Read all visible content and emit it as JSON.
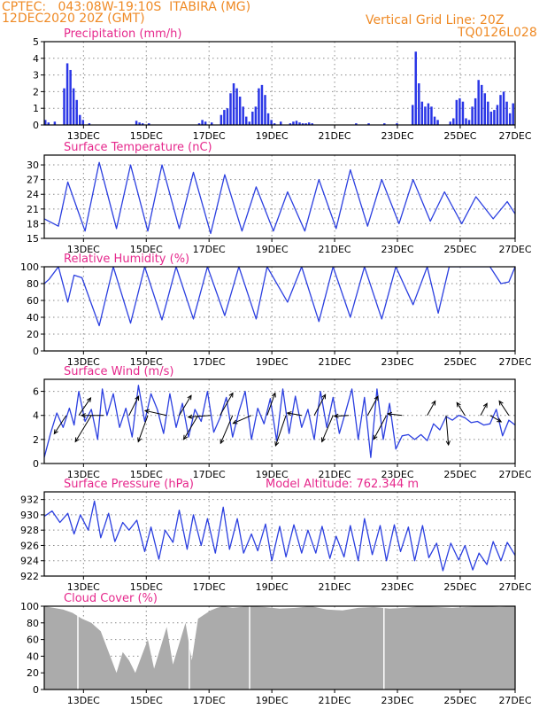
{
  "header": {
    "line1_left": "CPTEC:   043:08W-19:10S  ITABIRA (MG)",
    "line2_left": "12DEC2020 20Z (GMT)",
    "line1_right": "Vertical Grid Line: 20Z",
    "line2_right": "TQ0126L028"
  },
  "colors": {
    "header": "#ef8a25",
    "title": "#e6288c",
    "line": "#2b3fe0",
    "bar": "#2a36e6",
    "cloud": "#ababab"
  },
  "chart_data": [
    {
      "type": "bar",
      "title": "Precipitation (mm/h)",
      "ylim": [
        0,
        5
      ],
      "yticks": [
        0,
        1,
        2,
        3,
        4,
        5
      ],
      "xtick_labels": [
        "13DEC",
        "15DEC",
        "17DEC",
        "19DEC",
        "21DEC",
        "23DEC",
        "25DEC",
        "27DEC"
      ],
      "x_start": "2020-12-12 20Z",
      "x_end": "2020-12-27 20Z",
      "x": [
        0.0,
        0.1,
        0.3,
        0.6,
        0.7,
        0.8,
        0.9,
        1.0,
        1.1,
        1.2,
        1.4,
        2.9,
        3.0,
        3.1,
        3.3,
        4.9,
        5.0,
        5.1,
        5.3,
        5.6,
        5.7,
        5.8,
        5.9,
        6.0,
        6.1,
        6.2,
        6.3,
        6.4,
        6.5,
        6.6,
        6.7,
        6.8,
        6.9,
        7.0,
        7.1,
        7.2,
        7.3,
        7.5,
        7.8,
        7.9,
        8.0,
        8.1,
        8.2,
        8.3,
        8.4,
        8.5,
        9.9,
        10.3,
        10.8,
        11.2,
        11.7,
        11.8,
        11.9,
        12.0,
        12.1,
        12.2,
        12.3,
        12.4,
        12.5,
        12.9,
        13.0,
        13.1,
        13.2,
        13.3,
        13.4,
        13.5,
        13.6,
        13.7,
        13.8,
        13.9,
        14.0,
        14.1,
        14.2,
        14.3,
        14.4,
        14.5,
        14.6,
        14.7,
        14.8,
        14.9,
        15.0
      ],
      "values": [
        0.3,
        0.15,
        0.2,
        2.2,
        3.7,
        3.3,
        2.2,
        1.5,
        0.6,
        0.3,
        0.1,
        0.25,
        0.15,
        0.1,
        0.1,
        0.1,
        0.3,
        0.2,
        0.15,
        0.6,
        0.9,
        1.0,
        1.9,
        2.5,
        2.2,
        1.7,
        1.1,
        0.5,
        0.2,
        0.8,
        1.1,
        2.2,
        2.4,
        1.8,
        0.7,
        0.3,
        0.1,
        0.2,
        0.1,
        0.2,
        0.25,
        0.15,
        0.1,
        0.1,
        0.15,
        0.1,
        0.1,
        0.1,
        0.1,
        0.1,
        1.2,
        4.4,
        2.5,
        1.4,
        1.1,
        1.3,
        1.1,
        0.5,
        0.3,
        0.2,
        0.4,
        1.5,
        1.6,
        1.4,
        0.4,
        0.3,
        1.1,
        1.6,
        2.7,
        2.4,
        1.9,
        1.4,
        0.8,
        0.9,
        1.2,
        1.8,
        2.0,
        1.4,
        0.7,
        1.3,
        1.4
      ]
    },
    {
      "type": "line",
      "title": "Surface Temperature (nC)",
      "ylim": [
        15,
        32
      ],
      "yticks": [
        15,
        18,
        21,
        24,
        27,
        30
      ],
      "xtick_labels": [
        "13DEC",
        "15DEC",
        "17DEC",
        "19DEC",
        "21DEC",
        "23DEC",
        "25DEC",
        "27DEC"
      ],
      "x_start": "2020-12-12 20Z",
      "x_end": "2020-12-27 20Z",
      "x": [
        0,
        0.45,
        0.75,
        1.3,
        1.75,
        2.3,
        2.75,
        3.3,
        3.75,
        4.3,
        4.75,
        5.3,
        5.75,
        6.3,
        6.75,
        7.3,
        7.75,
        8.3,
        8.75,
        9.3,
        9.75,
        10.3,
        10.75,
        11.3,
        11.75,
        12.3,
        12.75,
        13.3,
        13.75,
        14.3,
        14.75,
        15
      ],
      "values": [
        19,
        17.5,
        26.5,
        16.5,
        30.5,
        17,
        30,
        16.5,
        30,
        17,
        28.5,
        16,
        28,
        16.5,
        25.5,
        16.5,
        24.5,
        16.5,
        27,
        17,
        29,
        17.5,
        27,
        18,
        27,
        18.5,
        24.5,
        18,
        23.5,
        19,
        22.5,
        20
      ]
    },
    {
      "type": "line",
      "title": "Relative Humidity (%)",
      "ylim": [
        0,
        100
      ],
      "yticks": [
        0,
        20,
        40,
        60,
        80,
        100
      ],
      "xtick_labels": [
        "13DEC",
        "15DEC",
        "17DEC",
        "19DEC",
        "21DEC",
        "23DEC",
        "25DEC",
        "27DEC"
      ],
      "x_start": "2020-12-12 20Z",
      "x_end": "2020-12-27 20Z",
      "x": [
        0,
        0.15,
        0.45,
        0.75,
        0.95,
        1.2,
        1.75,
        2.2,
        2.75,
        3.2,
        3.75,
        4.2,
        4.75,
        5.2,
        5.75,
        6.2,
        6.75,
        7.1,
        7.75,
        8.2,
        8.75,
        9.2,
        9.75,
        10.2,
        10.75,
        11.2,
        11.75,
        12.2,
        12.55,
        12.9,
        13.3,
        13.75,
        14.2,
        14.55,
        14.8,
        15
      ],
      "values": [
        80,
        85,
        100,
        58,
        90,
        87,
        30,
        100,
        33,
        100,
        37,
        100,
        38,
        100,
        42,
        100,
        38,
        100,
        58,
        100,
        35,
        100,
        40,
        100,
        38,
        100,
        55,
        100,
        45,
        100,
        100,
        100,
        100,
        80,
        82,
        100
      ]
    },
    {
      "type": "line",
      "title": "Surface Wind (m/s)",
      "ylim": [
        0,
        7
      ],
      "yticks": [
        0,
        2,
        4,
        6
      ],
      "xtick_labels": [
        "13DEC",
        "15DEC",
        "17DEC",
        "19DEC",
        "21DEC",
        "23DEC",
        "25DEC",
        "27DEC"
      ],
      "x_start": "2020-12-12 20Z",
      "x_end": "2020-12-27 20Z",
      "x": [
        0,
        0.2,
        0.4,
        0.6,
        0.8,
        0.95,
        1.1,
        1.3,
        1.5,
        1.7,
        1.85,
        2.0,
        2.2,
        2.4,
        2.6,
        2.8,
        3.0,
        3.2,
        3.4,
        3.6,
        3.8,
        4.0,
        4.2,
        4.4,
        4.6,
        4.8,
        5.0,
        5.2,
        5.4,
        5.6,
        5.8,
        6.0,
        6.2,
        6.4,
        6.6,
        6.8,
        7.0,
        7.2,
        7.4,
        7.6,
        7.8,
        8.0,
        8.2,
        8.4,
        8.6,
        8.8,
        9.0,
        9.2,
        9.4,
        9.6,
        9.8,
        10.0,
        10.2,
        10.4,
        10.6,
        10.8,
        11.0,
        11.2,
        11.4,
        11.6,
        11.8,
        12.0,
        12.2,
        12.4,
        12.6,
        12.8,
        13.0,
        13.2,
        13.4,
        13.6,
        13.8,
        14.0,
        14.2,
        14.4,
        14.6,
        14.8,
        15.0
      ],
      "values": [
        0.5,
        2.5,
        4.2,
        3.0,
        4.6,
        3.2,
        6.0,
        3.5,
        4.5,
        2.0,
        6.2,
        4.0,
        5.8,
        3.0,
        4.6,
        2.2,
        6.5,
        3.5,
        5.8,
        4.5,
        2.5,
        5.8,
        3.0,
        5.0,
        2.2,
        4.5,
        3.5,
        6.0,
        2.6,
        3.8,
        5.5,
        2.2,
        4.3,
        6.0,
        2.0,
        4.6,
        3.3,
        5.4,
        1.9,
        6.2,
        2.5,
        5.6,
        3.0,
        4.5,
        2.0,
        6.0,
        3.0,
        5.5,
        2.5,
        4.3,
        6.2,
        2.0,
        5.5,
        0.5,
        6.2,
        2.0,
        5.0,
        1.2,
        2.3,
        2.4,
        2.0,
        2.4,
        1.9,
        3.3,
        2.8,
        3.9,
        3.6,
        4.0,
        3.8,
        3.4,
        3.5,
        3.2,
        3.3,
        4.5,
        2.3,
        3.6,
        3.2
      ],
      "wind_vectors": [
        {
          "x": 0.7,
          "u": -1.5,
          "v": -2.3
        },
        {
          "x": 1.1,
          "u": 1.5,
          "v": 2.2
        },
        {
          "x": 1.5,
          "u": -2.0,
          "v": -3.3
        },
        {
          "x": 1.9,
          "u": -2.8,
          "v": 0.0
        },
        {
          "x": 2.7,
          "u": 1.2,
          "v": 2.4
        },
        {
          "x": 3.3,
          "u": -1.2,
          "v": -3.3
        },
        {
          "x": 3.9,
          "u": -2.7,
          "v": 0.6
        },
        {
          "x": 4.3,
          "u": 1.5,
          "v": 2.5
        },
        {
          "x": 4.9,
          "u": -1.8,
          "v": -3.0
        },
        {
          "x": 5.3,
          "u": -2.8,
          "v": -0.2
        },
        {
          "x": 5.6,
          "u": 1.6,
          "v": 2.8
        },
        {
          "x": 6.0,
          "u": -1.5,
          "v": -3.5
        },
        {
          "x": 6.6,
          "u": -2.3,
          "v": -1.0
        },
        {
          "x": 7.1,
          "u": 1.0,
          "v": 2.8
        },
        {
          "x": 7.7,
          "u": -1.3,
          "v": -3.8
        },
        {
          "x": 8.2,
          "u": -1.8,
          "v": 0.3
        },
        {
          "x": 8.6,
          "u": 1.4,
          "v": 2.6
        },
        {
          "x": 9.2,
          "u": -1.4,
          "v": -3.3
        },
        {
          "x": 9.7,
          "u": -1.8,
          "v": -0.1
        },
        {
          "x": 10.3,
          "u": 1.3,
          "v": 2.4
        },
        {
          "x": 10.9,
          "u": -1.6,
          "v": -3.0
        },
        {
          "x": 11.4,
          "u": -1.8,
          "v": 0.2
        },
        {
          "x": 12.2,
          "u": 1.0,
          "v": 1.8
        },
        {
          "x": 12.8,
          "u": 0.3,
          "v": -3.7
        },
        {
          "x": 13.4,
          "u": -1.0,
          "v": 1.6
        },
        {
          "x": 13.9,
          "u": 0.8,
          "v": 1.5
        },
        {
          "x": 14.2,
          "u": 1.4,
          "v": -0.8
        },
        {
          "x": 14.8,
          "u": -1.2,
          "v": 1.8
        }
      ]
    },
    {
      "type": "line",
      "title": "Surface Pressure (hPa)",
      "annotation": "Model Altitude: 762.344 m",
      "ylim": [
        922,
        933
      ],
      "yticks": [
        922,
        924,
        926,
        928,
        930,
        932
      ],
      "xtick_labels": [
        "13DEC",
        "15DEC",
        "17DEC",
        "19DEC",
        "21DEC",
        "23DEC",
        "25DEC",
        "27DEC"
      ],
      "x_start": "2020-12-12 20Z",
      "x_end": "2020-12-27 20Z",
      "x": [
        0,
        0.25,
        0.5,
        0.75,
        0.95,
        1.15,
        1.4,
        1.6,
        1.8,
        2.05,
        2.25,
        2.5,
        2.7,
        2.95,
        3.2,
        3.4,
        3.65,
        3.85,
        4.1,
        4.3,
        4.55,
        4.75,
        5.0,
        5.2,
        5.45,
        5.7,
        5.9,
        6.15,
        6.35,
        6.6,
        6.8,
        7.05,
        7.25,
        7.5,
        7.7,
        7.95,
        8.2,
        8.4,
        8.65,
        8.85,
        9.1,
        9.3,
        9.55,
        9.75,
        10.0,
        10.2,
        10.45,
        10.7,
        10.9,
        11.15,
        11.35,
        11.6,
        11.8,
        12.05,
        12.25,
        12.5,
        12.7,
        12.95,
        13.2,
        13.4,
        13.65,
        13.85,
        14.1,
        14.3,
        14.55,
        14.75,
        15.0
      ],
      "values": [
        929.8,
        930.5,
        929.0,
        930.2,
        927.5,
        930.0,
        928.0,
        931.8,
        927.0,
        930.2,
        926.5,
        929.0,
        928.0,
        929.3,
        925.2,
        928.4,
        924.2,
        928.0,
        926.4,
        930.6,
        925.5,
        930.0,
        926.0,
        929.5,
        925.0,
        931.0,
        925.5,
        929.5,
        925.0,
        927.5,
        925.3,
        928.8,
        924.0,
        928.5,
        924.5,
        928.7,
        925.0,
        928.0,
        925.0,
        928.5,
        924.3,
        927.2,
        924.5,
        928.6,
        924.0,
        929.5,
        924.8,
        928.6,
        924.0,
        928.7,
        925.2,
        928.4,
        924.0,
        928.6,
        924.4,
        926.3,
        922.7,
        926.3,
        924.1,
        926.0,
        922.8,
        925.0,
        923.5,
        926.5,
        924.0,
        926.4,
        924.7
      ]
    },
    {
      "type": "area",
      "title": "Cloud Cover (%)",
      "ylim": [
        0,
        100
      ],
      "yticks": [
        0,
        20,
        40,
        60,
        80,
        100
      ],
      "xtick_labels": [
        "13DEC",
        "15DEC",
        "17DEC",
        "19DEC",
        "21DEC",
        "23DEC",
        "25DEC",
        "27DEC"
      ],
      "x_start": "2020-12-12 20Z",
      "x_end": "2020-12-27 20Z",
      "x": [
        0,
        0.3,
        0.6,
        0.9,
        1.2,
        1.5,
        1.8,
        2.1,
        2.3,
        2.5,
        2.7,
        2.9,
        3.1,
        3.3,
        3.5,
        3.7,
        3.9,
        4.1,
        4.3,
        4.5,
        4.7,
        4.9,
        5.1,
        5.3,
        5.5,
        5.7,
        6.0,
        6.5,
        7.0,
        7.5,
        8.0,
        8.5,
        9.0,
        9.5,
        10.0,
        10.5,
        11.0,
        11.5,
        12.0,
        12.5,
        13.0,
        13.5,
        14.0,
        14.5,
        15.0
      ],
      "values": [
        100,
        98,
        96,
        92,
        85,
        80,
        70,
        40,
        20,
        45,
        35,
        20,
        40,
        60,
        25,
        50,
        75,
        30,
        55,
        80,
        35,
        85,
        90,
        95,
        98,
        100,
        98,
        100,
        99,
        97,
        98,
        100,
        96,
        95,
        98,
        99,
        97,
        98,
        100,
        99,
        98,
        99,
        100,
        99,
        100
      ],
      "gaps": [
        1.05,
        4.6,
        6.52,
        10.8
      ]
    }
  ]
}
